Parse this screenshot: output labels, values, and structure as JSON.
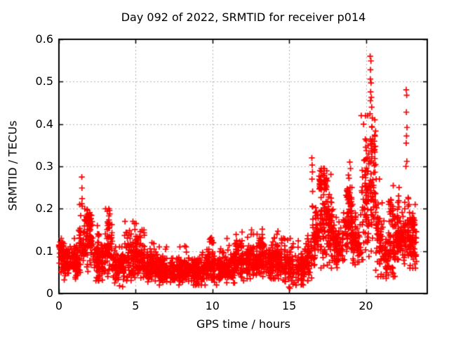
{
  "figure": {
    "background": "#ffffff",
    "text_color": "#000000"
  },
  "chart_data": {
    "type": "scatter",
    "title": "Day 092 of 2022, SRMTID for receiver p014",
    "xlabel": "GPS time / hours",
    "ylabel": "SRMTID / TECUs",
    "xlim": [
      0,
      24
    ],
    "ylim": [
      0,
      0.6
    ],
    "xticks": [
      [
        0,
        "0"
      ],
      [
        5,
        "5"
      ],
      [
        10,
        "10"
      ],
      [
        15,
        "15"
      ],
      [
        20,
        "20"
      ]
    ],
    "yticks": [
      [
        0,
        "0"
      ],
      [
        0.1,
        "0.1"
      ],
      [
        0.2,
        "0.2"
      ],
      [
        0.3,
        "0.3"
      ],
      [
        0.4,
        "0.4"
      ],
      [
        0.5,
        "0.5"
      ],
      [
        0.6,
        "0.6"
      ]
    ],
    "grid": {
      "visible": true,
      "color": "#b4b4b4",
      "style": "dotted"
    },
    "border_color": "#000000",
    "marker": {
      "shape": "plus",
      "color": "#ff0000",
      "size": 9,
      "stroke": 1.7
    },
    "legend": "none",
    "seed": 92,
    "series": [
      {
        "name": "SRMTID",
        "bands_format": "[t_start_h, t_end_h, y_min, y_max, y_center, points_per_hour]",
        "bands": [
          [
            0.0,
            0.3,
            0.04,
            0.145,
            0.09,
            135
          ],
          [
            0.3,
            1.3,
            0.03,
            0.13,
            0.075,
            135
          ],
          [
            1.3,
            1.65,
            0.05,
            0.21,
            0.11,
            120
          ],
          [
            1.65,
            2.2,
            0.04,
            0.21,
            0.125,
            125
          ],
          [
            1.75,
            2.15,
            0.15,
            0.205,
            0.18,
            50
          ],
          [
            2.2,
            3.0,
            0.03,
            0.16,
            0.075,
            120
          ],
          [
            3.0,
            3.5,
            0.04,
            0.2,
            0.1,
            120
          ],
          [
            3.15,
            3.4,
            0.13,
            0.2,
            0.165,
            40
          ],
          [
            3.5,
            4.3,
            0.015,
            0.11,
            0.06,
            120
          ],
          [
            4.3,
            5.1,
            0.03,
            0.17,
            0.085,
            120
          ],
          [
            5.1,
            5.75,
            0.03,
            0.15,
            0.075,
            120
          ],
          [
            5.75,
            6.5,
            0.025,
            0.12,
            0.06,
            120
          ],
          [
            6.5,
            7.5,
            0.02,
            0.11,
            0.055,
            120
          ],
          [
            7.5,
            8.5,
            0.02,
            0.11,
            0.055,
            120
          ],
          [
            8.5,
            9.5,
            0.02,
            0.1,
            0.05,
            120
          ],
          [
            9.5,
            10.0,
            0.03,
            0.135,
            0.065,
            120
          ],
          [
            9.7,
            9.95,
            0.115,
            0.14,
            0.127,
            30
          ],
          [
            10.0,
            10.8,
            0.02,
            0.12,
            0.055,
            120
          ],
          [
            10.8,
            11.5,
            0.025,
            0.13,
            0.06,
            120
          ],
          [
            11.5,
            12.2,
            0.03,
            0.145,
            0.07,
            120
          ],
          [
            12.2,
            13.0,
            0.035,
            0.14,
            0.075,
            120
          ],
          [
            13.0,
            13.6,
            0.04,
            0.15,
            0.085,
            120
          ],
          [
            13.6,
            14.5,
            0.035,
            0.14,
            0.075,
            120
          ],
          [
            14.5,
            15.3,
            0.015,
            0.13,
            0.065,
            120
          ],
          [
            15.3,
            16.0,
            0.02,
            0.135,
            0.06,
            120
          ],
          [
            16.0,
            16.45,
            0.03,
            0.17,
            0.08,
            120
          ],
          [
            16.45,
            16.7,
            0.05,
            0.22,
            0.11,
            110
          ],
          [
            16.7,
            17.9,
            0.06,
            0.295,
            0.155,
            130
          ],
          [
            16.9,
            17.5,
            0.22,
            0.29,
            0.262,
            55
          ],
          [
            17.9,
            18.5,
            0.05,
            0.18,
            0.11,
            120
          ],
          [
            18.5,
            19.15,
            0.08,
            0.28,
            0.165,
            125
          ],
          [
            18.7,
            19.1,
            0.18,
            0.265,
            0.225,
            55
          ],
          [
            19.15,
            19.7,
            0.06,
            0.19,
            0.12,
            120
          ],
          [
            19.7,
            20.25,
            0.08,
            0.42,
            0.2,
            130
          ],
          [
            19.9,
            20.2,
            0.26,
            0.42,
            0.33,
            45
          ],
          [
            20.25,
            20.65,
            0.1,
            0.42,
            0.24,
            125
          ],
          [
            20.3,
            20.6,
            0.28,
            0.41,
            0.355,
            50
          ],
          [
            20.65,
            21.2,
            0.04,
            0.27,
            0.13,
            120
          ],
          [
            21.2,
            21.5,
            0.03,
            0.15,
            0.09,
            115
          ],
          [
            21.5,
            21.9,
            0.035,
            0.26,
            0.12,
            120
          ],
          [
            21.55,
            21.85,
            0.15,
            0.26,
            0.2,
            40
          ],
          [
            21.9,
            22.45,
            0.08,
            0.25,
            0.13,
            130
          ],
          [
            21.95,
            22.35,
            0.1,
            0.155,
            0.128,
            80
          ],
          [
            22.45,
            22.8,
            0.07,
            0.24,
            0.13,
            120
          ],
          [
            22.8,
            23.3,
            0.06,
            0.21,
            0.12,
            120
          ],
          [
            22.85,
            23.25,
            0.13,
            0.21,
            0.165,
            45
          ]
        ],
        "outliers": [
          [
            1.49,
            0.275
          ],
          [
            1.5,
            0.249
          ],
          [
            1.51,
            0.224
          ],
          [
            1.49,
            0.212
          ],
          [
            1.52,
            0.206
          ],
          [
            3.25,
            0.2
          ],
          [
            3.3,
            0.196
          ],
          [
            4.92,
            0.165
          ],
          [
            4.95,
            0.151
          ],
          [
            5.3,
            0.146
          ],
          [
            5.55,
            0.143
          ],
          [
            8.2,
            0.112
          ],
          [
            12.55,
            0.15
          ],
          [
            13.25,
            0.152
          ],
          [
            14.27,
            0.147
          ],
          [
            16.48,
            0.32
          ],
          [
            16.5,
            0.303
          ],
          [
            16.52,
            0.287
          ],
          [
            16.49,
            0.27
          ],
          [
            16.53,
            0.241
          ],
          [
            16.51,
            0.206
          ],
          [
            17.25,
            0.295
          ],
          [
            17.1,
            0.288
          ],
          [
            18.95,
            0.31
          ],
          [
            19.0,
            0.295
          ],
          [
            18.9,
            0.272
          ],
          [
            20.28,
            0.56
          ],
          [
            20.33,
            0.549
          ],
          [
            20.3,
            0.528
          ],
          [
            20.29,
            0.506
          ],
          [
            20.34,
            0.497
          ],
          [
            20.31,
            0.476
          ],
          [
            20.36,
            0.463
          ],
          [
            20.3,
            0.455
          ],
          [
            20.38,
            0.44
          ],
          [
            20.27,
            0.424
          ],
          [
            20.42,
            0.414
          ],
          [
            22.63,
            0.481
          ],
          [
            22.66,
            0.468
          ],
          [
            22.64,
            0.428
          ],
          [
            22.68,
            0.392
          ],
          [
            22.65,
            0.372
          ],
          [
            22.63,
            0.355
          ],
          [
            22.67,
            0.312
          ],
          [
            22.61,
            0.3
          ],
          [
            3.95,
            0.018
          ],
          [
            4.15,
            0.016
          ],
          [
            15.05,
            0.012
          ]
        ],
        "x_data_range": [
          0,
          23.32
        ]
      }
    ]
  }
}
